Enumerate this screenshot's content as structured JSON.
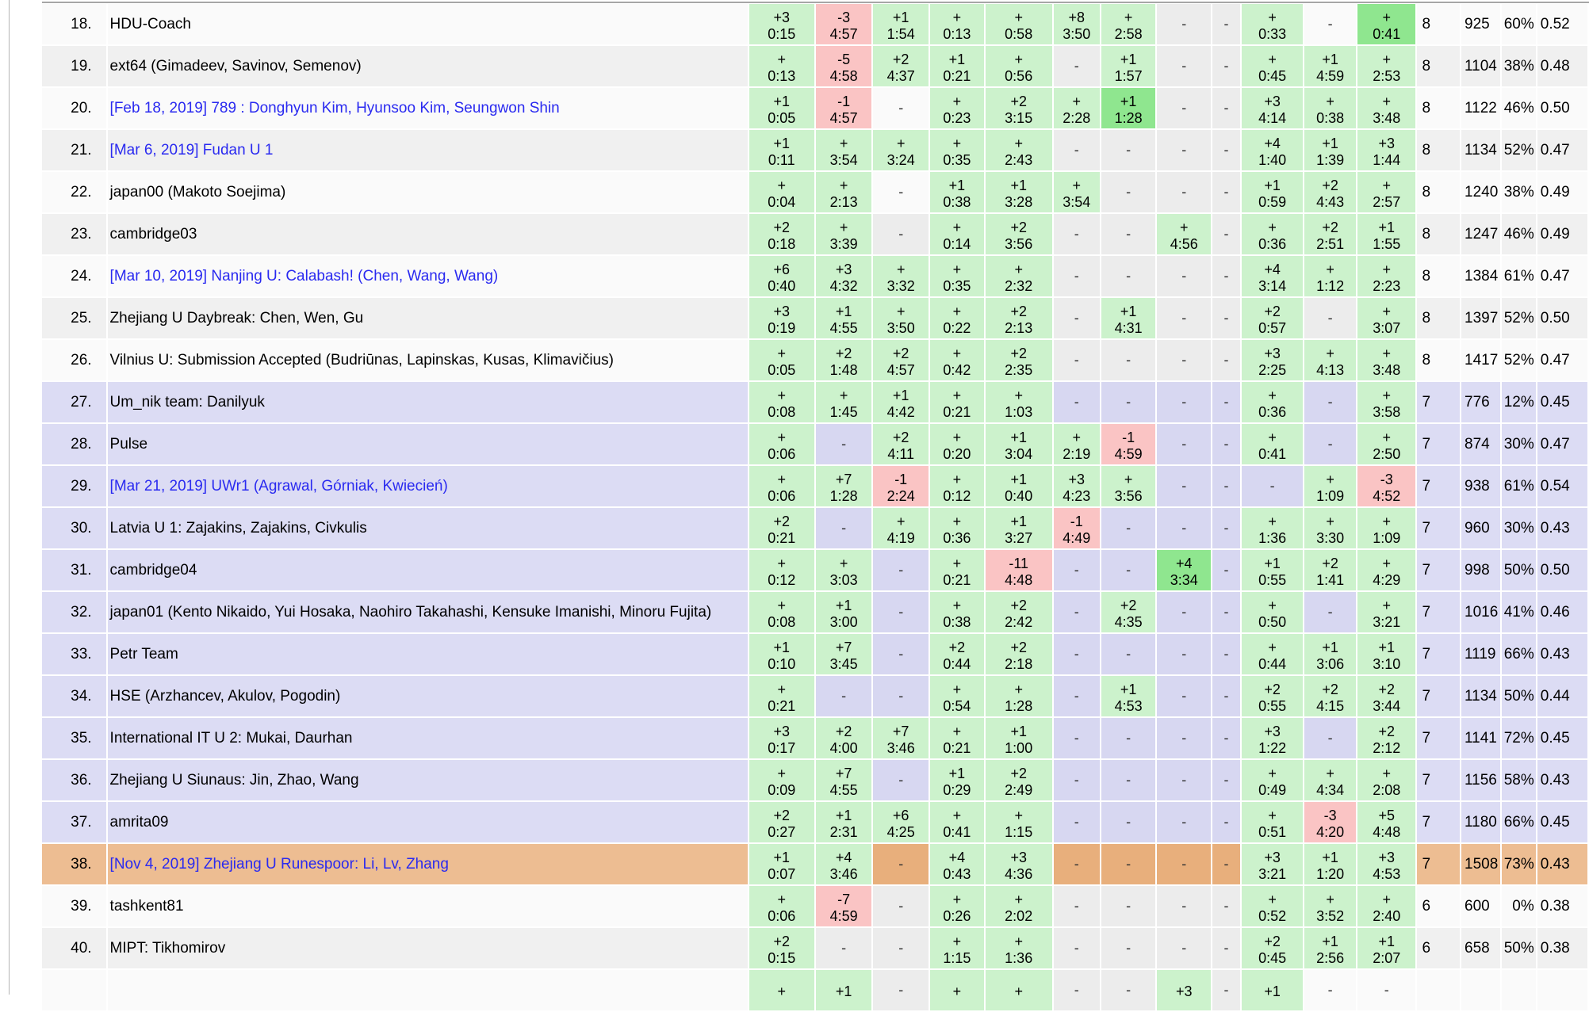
{
  "colors": {
    "accepted_bg": "#ccf2cc",
    "first_solve_bg": "#8fe68f",
    "rejected_bg": "#fac4c4",
    "row_white": "#fafafa",
    "row_gray": "#f0f0f0",
    "row_virtual_lavender": "#dcdcf4",
    "row_self_orange": "#edbd92",
    "dash_gray": "#ececec",
    "dash_lavender": "#d7d7f1",
    "dash_orange": "#e8af7c",
    "link_blue": "#2a2af0",
    "dash_text": "#333333",
    "frame_line": "#b4b4b4",
    "top_border": "#a6a6a6"
  },
  "table": {
    "problem_count": 12,
    "rows": [
      {
        "rank": "18.",
        "team": "HDU-Coach",
        "link": false,
        "style": "w",
        "cells": [
          [
            "+3",
            "0:15"
          ],
          [
            "-3",
            "4:57",
            "r"
          ],
          [
            "+1",
            "1:54"
          ],
          [
            "+",
            "0:13"
          ],
          [
            "+",
            "0:58"
          ],
          [
            "+8",
            "3:50"
          ],
          [
            "+",
            "2:58"
          ],
          "d",
          "d",
          [
            "+",
            "0:33"
          ],
          "dl",
          [
            "+",
            "0:41",
            "f"
          ]
        ],
        "solved": "8",
        "penalty": "925",
        "pct": "60%",
        "ratio": "0.52"
      },
      {
        "rank": "19.",
        "team": "ext64 (Gimadeev, Savinov, Semenov)",
        "link": false,
        "style": "g",
        "cells": [
          [
            "+",
            "0:13"
          ],
          [
            "-5",
            "4:58",
            "r"
          ],
          [
            "+2",
            "4:37"
          ],
          [
            "+1",
            "0:21"
          ],
          [
            "+",
            "0:56"
          ],
          "d",
          [
            "+1",
            "1:57"
          ],
          "d",
          "d",
          [
            "+",
            "0:45"
          ],
          [
            "+1",
            "4:59"
          ],
          [
            "+",
            "2:53"
          ]
        ],
        "solved": "8",
        "penalty": "1104",
        "pct": "38%",
        "ratio": "0.48"
      },
      {
        "rank": "20.",
        "team": "[Feb 18, 2019] 789 : Donghyun Kim, Hyunsoo Kim, Seungwon Shin",
        "link": true,
        "style": "w",
        "cells": [
          [
            "+1",
            "0:05"
          ],
          [
            "-1",
            "4:57",
            "r"
          ],
          "dl",
          [
            "+",
            "0:23"
          ],
          [
            "+2",
            "3:15"
          ],
          [
            "+",
            "2:28"
          ],
          [
            "+1",
            "1:28",
            "f"
          ],
          "d",
          "d",
          [
            "+3",
            "4:14"
          ],
          [
            "+",
            "0:38"
          ],
          [
            "+",
            "3:48"
          ]
        ],
        "solved": "8",
        "penalty": "1122",
        "pct": "46%",
        "ratio": "0.50"
      },
      {
        "rank": "21.",
        "team": "[Mar 6, 2019] Fudan U 1",
        "link": true,
        "style": "g",
        "cells": [
          [
            "+1",
            "0:11"
          ],
          [
            "+",
            "3:54"
          ],
          [
            "+",
            "3:24"
          ],
          [
            "+",
            "0:35"
          ],
          [
            "+",
            "2:43"
          ],
          "d",
          "d",
          "d",
          "d",
          [
            "+4",
            "1:40"
          ],
          [
            "+1",
            "1:39"
          ],
          [
            "+3",
            "1:44"
          ]
        ],
        "solved": "8",
        "penalty": "1134",
        "pct": "52%",
        "ratio": "0.47"
      },
      {
        "rank": "22.",
        "team": "japan00 (Makoto Soejima)",
        "link": false,
        "style": "w",
        "cells": [
          [
            "+",
            "0:04"
          ],
          [
            "+",
            "2:13"
          ],
          "dl",
          [
            "+1",
            "0:38"
          ],
          [
            "+1",
            "3:28"
          ],
          [
            "+",
            "3:54"
          ],
          "d",
          "d",
          "d",
          [
            "+1",
            "0:59"
          ],
          [
            "+2",
            "4:43"
          ],
          [
            "+",
            "2:57"
          ]
        ],
        "solved": "8",
        "penalty": "1240",
        "pct": "38%",
        "ratio": "0.49"
      },
      {
        "rank": "23.",
        "team": "cambridge03",
        "link": false,
        "style": "g",
        "cells": [
          [
            "+2",
            "0:18"
          ],
          [
            "+",
            "3:39"
          ],
          "d",
          [
            "+",
            "0:14"
          ],
          [
            "+2",
            "3:56"
          ],
          "d",
          "d",
          [
            "+",
            "4:56"
          ],
          "d",
          [
            "+",
            "0:36"
          ],
          [
            "+2",
            "2:51"
          ],
          [
            "+1",
            "1:55"
          ]
        ],
        "solved": "8",
        "penalty": "1247",
        "pct": "46%",
        "ratio": "0.49"
      },
      {
        "rank": "24.",
        "team": "[Mar 10, 2019] Nanjing U: Calabash! (Chen, Wang, Wang)",
        "link": true,
        "style": "w",
        "cells": [
          [
            "+6",
            "0:40"
          ],
          [
            "+3",
            "4:32"
          ],
          [
            "+",
            "3:32"
          ],
          [
            "+",
            "0:35"
          ],
          [
            "+",
            "2:32"
          ],
          "d",
          "d",
          "d",
          "d",
          [
            "+4",
            "3:14"
          ],
          [
            "+",
            "1:12"
          ],
          [
            "+",
            "2:23"
          ]
        ],
        "solved": "8",
        "penalty": "1384",
        "pct": "61%",
        "ratio": "0.47"
      },
      {
        "rank": "25.",
        "team": "Zhejiang U Daybreak: Chen, Wen, Gu",
        "link": false,
        "style": "g",
        "cells": [
          [
            "+3",
            "0:19"
          ],
          [
            "+1",
            "4:55"
          ],
          [
            "+",
            "3:50"
          ],
          [
            "+",
            "0:22"
          ],
          [
            "+2",
            "2:13"
          ],
          "d",
          [
            "+1",
            "4:31"
          ],
          "d",
          "d",
          [
            "+2",
            "0:57"
          ],
          "d",
          [
            "+",
            "3:07"
          ]
        ],
        "solved": "8",
        "penalty": "1397",
        "pct": "52%",
        "ratio": "0.50"
      },
      {
        "rank": "26.",
        "team": "Vilnius U: Submission Accepted (Budriūnas, Lapinskas, Kusas, Klimavičius)",
        "link": false,
        "style": "w",
        "cells": [
          [
            "+",
            "0:05"
          ],
          [
            "+2",
            "1:48"
          ],
          [
            "+2",
            "4:57"
          ],
          [
            "+",
            "0:42"
          ],
          [
            "+2",
            "2:35"
          ],
          "d",
          "d",
          "d",
          "d",
          [
            "+3",
            "2:25"
          ],
          [
            "+",
            "4:13"
          ],
          [
            "+",
            "3:48"
          ]
        ],
        "solved": "8",
        "penalty": "1417",
        "pct": "52%",
        "ratio": "0.47"
      },
      {
        "rank": "27.",
        "team": "Um_nik team: Danilyuk",
        "link": false,
        "style": "l",
        "cells": [
          [
            "+",
            "0:08"
          ],
          [
            "+",
            "1:45"
          ],
          [
            "+1",
            "4:42"
          ],
          [
            "+",
            "0:21"
          ],
          [
            "+",
            "1:03"
          ],
          "d",
          "d",
          "d",
          "d",
          [
            "+",
            "0:36"
          ],
          "d",
          [
            "+",
            "3:58"
          ]
        ],
        "solved": "7",
        "penalty": "776",
        "pct": "12%",
        "ratio": "0.45"
      },
      {
        "rank": "28.",
        "team": "Pulse",
        "link": false,
        "style": "l",
        "cells": [
          [
            "+",
            "0:06"
          ],
          "d",
          [
            "+2",
            "4:11"
          ],
          [
            "+",
            "0:20"
          ],
          [
            "+1",
            "3:04"
          ],
          [
            "+",
            "2:19"
          ],
          [
            "-1",
            "4:59",
            "r"
          ],
          "d",
          "d",
          [
            "+",
            "0:41"
          ],
          "d",
          [
            "+",
            "2:50"
          ]
        ],
        "solved": "7",
        "penalty": "874",
        "pct": "30%",
        "ratio": "0.47"
      },
      {
        "rank": "29.",
        "team": "[Mar 21, 2019] UWr1 (Agrawal, Górniak, Kwiecień)",
        "link": true,
        "style": "l",
        "cells": [
          [
            "+",
            "0:06"
          ],
          [
            "+7",
            "1:28"
          ],
          [
            "-1",
            "2:24",
            "r"
          ],
          [
            "+",
            "0:12"
          ],
          [
            "+1",
            "0:40"
          ],
          [
            "+3",
            "4:23"
          ],
          [
            "+",
            "3:56"
          ],
          "d",
          "d",
          "d",
          [
            "+",
            "1:09"
          ],
          [
            "-3",
            "4:52",
            "r"
          ]
        ],
        "solved": "7",
        "penalty": "938",
        "pct": "61%",
        "ratio": "0.54"
      },
      {
        "rank": "30.",
        "team": "Latvia U 1: Zajakins, Zajakins, Civkulis",
        "link": false,
        "style": "l",
        "cells": [
          [
            "+2",
            "0:21"
          ],
          "d",
          [
            "+",
            "4:19"
          ],
          [
            "+",
            "0:36"
          ],
          [
            "+1",
            "3:27"
          ],
          [
            "-1",
            "4:49",
            "r"
          ],
          "d",
          "d",
          "d",
          [
            "+",
            "1:36"
          ],
          [
            "+",
            "3:30"
          ],
          [
            "+",
            "1:09"
          ]
        ],
        "solved": "7",
        "penalty": "960",
        "pct": "30%",
        "ratio": "0.43"
      },
      {
        "rank": "31.",
        "team": "cambridge04",
        "link": false,
        "style": "l",
        "cells": [
          [
            "+",
            "0:12"
          ],
          [
            "+",
            "3:03"
          ],
          "d",
          [
            "+",
            "0:21"
          ],
          [
            "-11",
            "4:48",
            "r"
          ],
          "d",
          "d",
          [
            "+4",
            "3:34",
            "f"
          ],
          "d",
          [
            "+1",
            "0:55"
          ],
          [
            "+2",
            "1:41"
          ],
          [
            "+",
            "4:29"
          ]
        ],
        "solved": "7",
        "penalty": "998",
        "pct": "50%",
        "ratio": "0.50"
      },
      {
        "rank": "32.",
        "team": "japan01 (Kento Nikaido, Yui Hosaka, Naohiro Takahashi, Kensuke Imanishi, Minoru Fujita)",
        "link": false,
        "style": "l",
        "cells": [
          [
            "+",
            "0:08"
          ],
          [
            "+1",
            "3:00"
          ],
          "d",
          [
            "+",
            "0:38"
          ],
          [
            "+2",
            "2:42"
          ],
          "d",
          [
            "+2",
            "4:35"
          ],
          "d",
          "d",
          [
            "+",
            "0:50"
          ],
          "d",
          [
            "+",
            "3:21"
          ]
        ],
        "solved": "7",
        "penalty": "1016",
        "pct": "41%",
        "ratio": "0.46"
      },
      {
        "rank": "33.",
        "team": "Petr Team",
        "link": false,
        "style": "l",
        "cells": [
          [
            "+1",
            "0:10"
          ],
          [
            "+7",
            "3:45"
          ],
          "d",
          [
            "+2",
            "0:44"
          ],
          [
            "+2",
            "2:18"
          ],
          "d",
          "d",
          "d",
          "d",
          [
            "+",
            "0:44"
          ],
          [
            "+1",
            "3:06"
          ],
          [
            "+1",
            "3:10"
          ]
        ],
        "solved": "7",
        "penalty": "1119",
        "pct": "66%",
        "ratio": "0.43"
      },
      {
        "rank": "34.",
        "team": "HSE (Arzhancev, Akulov, Pogodin)",
        "link": false,
        "style": "l",
        "cells": [
          [
            "+",
            "0:21"
          ],
          "d",
          "d",
          [
            "+",
            "0:54"
          ],
          [
            "+",
            "1:28"
          ],
          "d",
          [
            "+1",
            "4:53"
          ],
          "d",
          "d",
          [
            "+2",
            "0:55"
          ],
          [
            "+2",
            "4:15"
          ],
          [
            "+2",
            "3:44"
          ]
        ],
        "solved": "7",
        "penalty": "1134",
        "pct": "50%",
        "ratio": "0.44"
      },
      {
        "rank": "35.",
        "team": "International IT U 2: Mukai, Daurhan",
        "link": false,
        "style": "l",
        "cells": [
          [
            "+3",
            "0:17"
          ],
          [
            "+2",
            "4:00"
          ],
          [
            "+7",
            "3:46"
          ],
          [
            "+",
            "0:21"
          ],
          [
            "+1",
            "1:00"
          ],
          "d",
          "d",
          "d",
          "d",
          [
            "+3",
            "1:22"
          ],
          "d",
          [
            "+2",
            "2:12"
          ]
        ],
        "solved": "7",
        "penalty": "1141",
        "pct": "72%",
        "ratio": "0.45"
      },
      {
        "rank": "36.",
        "team": "Zhejiang U Siunaus: Jin, Zhao, Wang",
        "link": false,
        "style": "l",
        "cells": [
          [
            "+",
            "0:09"
          ],
          [
            "+7",
            "4:55"
          ],
          "d",
          [
            "+1",
            "0:29"
          ],
          [
            "+2",
            "2:49"
          ],
          "d",
          "d",
          "d",
          "d",
          [
            "+",
            "0:49"
          ],
          [
            "+",
            "4:34"
          ],
          [
            "+",
            "2:08"
          ]
        ],
        "solved": "7",
        "penalty": "1156",
        "pct": "58%",
        "ratio": "0.43"
      },
      {
        "rank": "37.",
        "team": "amrita09",
        "link": false,
        "style": "l",
        "cells": [
          [
            "+2",
            "0:27"
          ],
          [
            "+1",
            "2:31"
          ],
          [
            "+6",
            "4:25"
          ],
          [
            "+",
            "0:41"
          ],
          [
            "+",
            "1:15"
          ],
          "d",
          "d",
          "d",
          "d",
          [
            "+",
            "0:51"
          ],
          [
            "-3",
            "4:20",
            "r"
          ],
          [
            "+5",
            "4:48"
          ]
        ],
        "solved": "7",
        "penalty": "1180",
        "pct": "66%",
        "ratio": "0.45"
      },
      {
        "rank": "38.",
        "team": "[Nov 4, 2019] Zhejiang U Runespoor: Li, Lv, Zhang",
        "link": true,
        "style": "o",
        "cells": [
          [
            "+1",
            "0:07"
          ],
          [
            "+4",
            "3:46"
          ],
          "d",
          [
            "+4",
            "0:43"
          ],
          [
            "+3",
            "4:36"
          ],
          "d",
          "d",
          "d",
          "d",
          [
            "+3",
            "3:21"
          ],
          [
            "+1",
            "1:20"
          ],
          [
            "+3",
            "4:53"
          ]
        ],
        "solved": "7",
        "penalty": "1508",
        "pct": "73%",
        "ratio": "0.43"
      },
      {
        "rank": "39.",
        "team": "tashkent81",
        "link": false,
        "style": "w",
        "cells": [
          [
            "+",
            "0:06"
          ],
          [
            "-7",
            "4:59",
            "r"
          ],
          "d",
          [
            "+",
            "0:26"
          ],
          [
            "+",
            "2:02"
          ],
          "d",
          "d",
          "d",
          "d",
          [
            "+",
            "0:52"
          ],
          [
            "+",
            "3:52"
          ],
          [
            "+",
            "2:40"
          ]
        ],
        "solved": "6",
        "penalty": "600",
        "pct": "0%",
        "ratio": "0.38"
      },
      {
        "rank": "40.",
        "team": "MIPT: Tikhomirov",
        "link": false,
        "style": "g",
        "cells": [
          [
            "+2",
            "0:15"
          ],
          "d",
          "d",
          [
            "+",
            "1:15"
          ],
          [
            "+",
            "1:36"
          ],
          "d",
          "d",
          "d",
          "d",
          [
            "+2",
            "0:45"
          ],
          [
            "+1",
            "2:56"
          ],
          [
            "+1",
            "2:07"
          ]
        ],
        "solved": "6",
        "penalty": "658",
        "pct": "50%",
        "ratio": "0.38"
      },
      {
        "rank": "",
        "team": "",
        "link": false,
        "style": "w",
        "cells": [
          [
            "+",
            ""
          ],
          [
            "+1",
            ""
          ],
          "d",
          [
            "+",
            ""
          ],
          [
            "+",
            ""
          ],
          "d",
          "d",
          [
            "+3",
            ""
          ],
          "d",
          [
            "+1",
            ""
          ],
          "dl",
          "dl"
        ],
        "solved": "",
        "penalty": "",
        "pct": "",
        "ratio": ""
      }
    ]
  }
}
